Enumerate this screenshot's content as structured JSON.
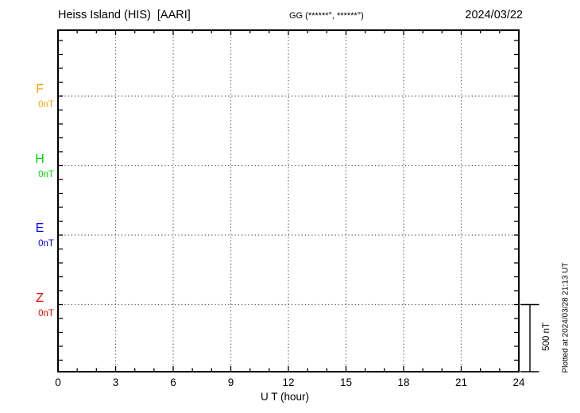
{
  "header": {
    "title": "Heiss Island (HIS)  [AARI]",
    "gg_coords": "GG (******°, ******°)",
    "date": "2024/03/22"
  },
  "plot": {
    "x_axis": {
      "title": "U T (hour)",
      "tick_labels": [
        "0",
        "3",
        "6",
        "9",
        "12",
        "15",
        "18",
        "21",
        "24"
      ]
    },
    "channels": [
      {
        "label": "F",
        "baseline_label": "0nT",
        "color": "#FFA500"
      },
      {
        "label": "H",
        "baseline_label": "0nT",
        "color": "#00DD00"
      },
      {
        "label": "E",
        "baseline_label": "0nT",
        "color": "#0000FF"
      },
      {
        "label": "Z",
        "baseline_label": "0nT",
        "color": "#FF0000"
      }
    ],
    "scale_bar_label": "500 nT"
  },
  "side_note": "Plotted at 2024/03/28 21:13 UT",
  "colors": {
    "frame": "#000000",
    "grid_dots": "#555555",
    "text": "#000000"
  },
  "chart_data": {
    "type": "line",
    "title": "Heiss Island (HIS) [AARI] magnetogram, 2024/03/22",
    "xlabel": "U T (hour)",
    "x_range_hours": [
      0,
      24
    ],
    "x_major_tick_step_hours": 3,
    "x_minor_tick_step_hours": 1,
    "x_gridline_hours": [
      3,
      6,
      9,
      12,
      15,
      18,
      21
    ],
    "y_tick_step_nT": 100,
    "channel_offset_nT": 500,
    "scale_bar_nT": 500,
    "grid": "dotted",
    "series": [
      {
        "name": "F",
        "color": "#FFA500",
        "baseline_nT": 0,
        "values": []
      },
      {
        "name": "H",
        "color": "#00DD00",
        "baseline_nT": 0,
        "values": []
      },
      {
        "name": "E",
        "color": "#0000FF",
        "baseline_nT": 0,
        "values": []
      },
      {
        "name": "Z",
        "color": "#FF0000",
        "baseline_nT": 0,
        "values": []
      }
    ],
    "note": "No trace data plotted; only zero baselines shown for each channel"
  }
}
